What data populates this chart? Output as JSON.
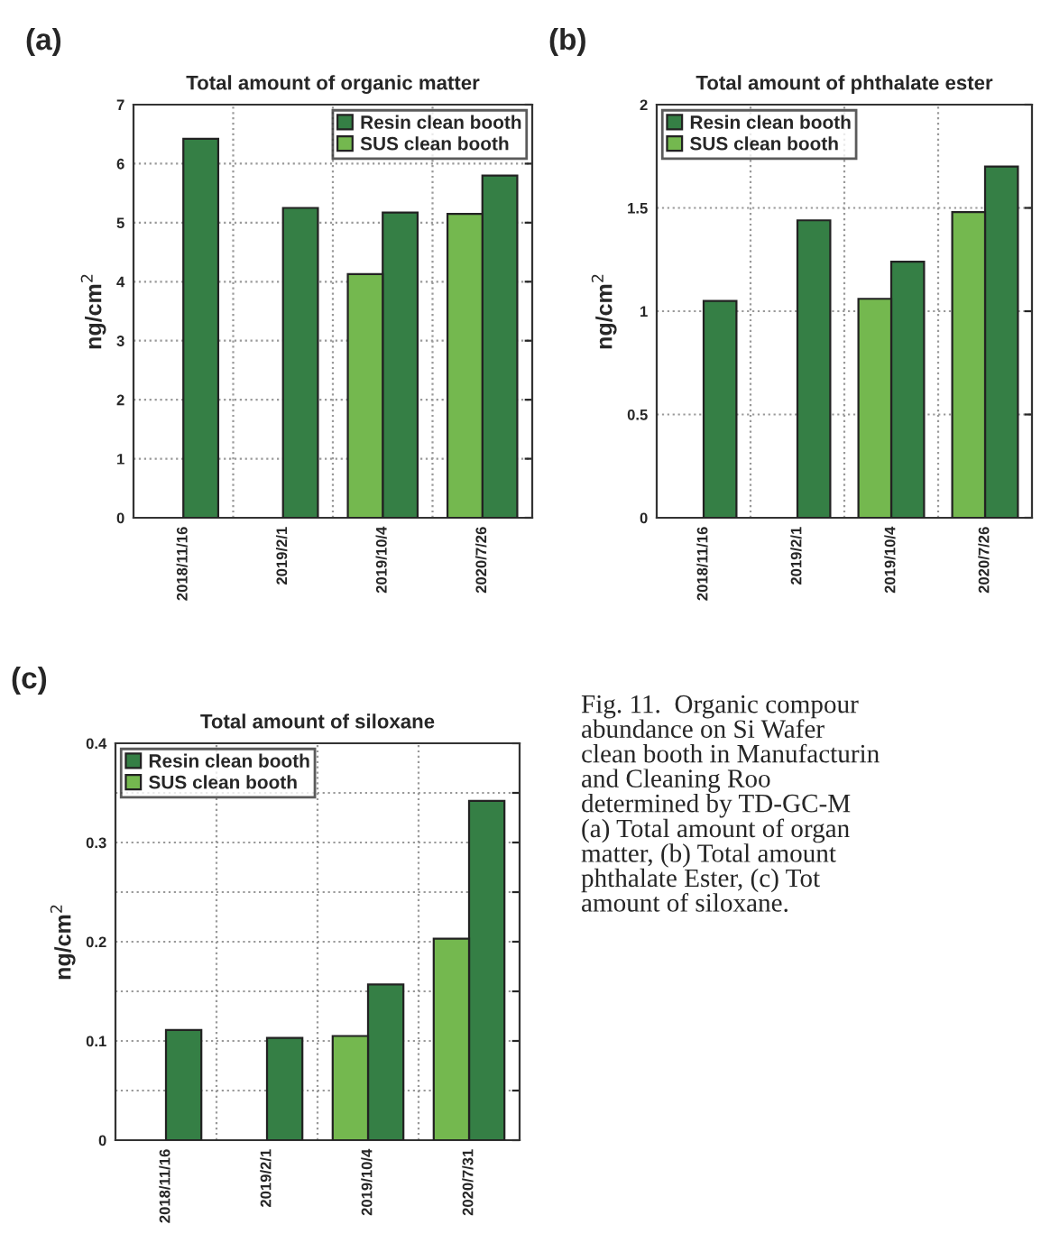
{
  "chart_data": [
    {
      "type": "bar",
      "title": "Total amount of organic matter",
      "ylabel": "ng/cm$^{2}$",
      "annotations": [
        "(a)"
      ],
      "categories": [
        "2018/11/16",
        "2019/2/1",
        "2019/10/4",
        "2020/7/26"
      ],
      "series": [
        {
          "name": "Resin clean booth",
          "color": "#357f45",
          "values": [
            6.42,
            5.25,
            5.17,
            5.8
          ]
        },
        {
          "name": "SUS clean booth",
          "color": "#74b84f",
          "values": [
            null,
            null,
            4.13,
            5.15
          ]
        }
      ],
      "ylim": [
        0,
        7
      ],
      "yticks": [
        0,
        1,
        2,
        3,
        4,
        5,
        6,
        7
      ],
      "grid": true,
      "legend": "top right"
    },
    {
      "type": "bar",
      "title": "Total amount of phthalate ester",
      "ylabel": "ng/cm$^{2}$",
      "annotations": [
        "(b)"
      ],
      "categories": [
        "2018/11/16",
        "2019/2/1",
        "2019/10/4",
        "2020/7/26"
      ],
      "series": [
        {
          "name": "Resin clean booth",
          "color": "#357f45",
          "values": [
            1.05,
            1.44,
            1.24,
            1.7
          ]
        },
        {
          "name": "SUS clean booth",
          "color": "#74b84f",
          "values": [
            null,
            null,
            1.06,
            1.48
          ]
        }
      ],
      "ylim": [
        0,
        2
      ],
      "yticks": [
        0,
        0.5,
        1,
        1.5,
        2
      ],
      "grid": true,
      "legend": "top left"
    },
    {
      "type": "bar",
      "title": "Total amount of siloxane",
      "ylabel": "ng/cm$^{2}$",
      "annotations": [
        "(c)"
      ],
      "categories": [
        "2018/11/16",
        "2019/2/1",
        "2019/10/4",
        "2020/7/31"
      ],
      "series": [
        {
          "name": "Resin clean booth",
          "color": "#357f45",
          "values": [
            0.111,
            0.103,
            0.157,
            0.342
          ]
        },
        {
          "name": "SUS clean booth",
          "color": "#74b84f",
          "values": [
            null,
            null,
            0.105,
            0.203
          ]
        }
      ],
      "ylim": [
        0,
        0.4
      ],
      "yticks": [
        0,
        {
          "value": 0.05,
          "label": null
        },
        0.1,
        {
          "value": 0.15,
          "label": null
        },
        0.2,
        {
          "value": 0.25,
          "label": null
        },
        0.3,
        {
          "value": 0.35,
          "label": null
        },
        0.4
      ],
      "grid": true,
      "legend": "top left"
    },
    {
      "type": "other",
      "annotations": [
        "Fig. 11.  Organic compour\nabundance on Si Wafer\nclean booth in Manufacturin\nand Cleaning Roo\ndetermined by TD-GC-M\n(a) Total amount of organ\nmatter, (b) Total amount\nphthalate Ester, (c) Tot\namount of siloxane."
      ]
    }
  ]
}
